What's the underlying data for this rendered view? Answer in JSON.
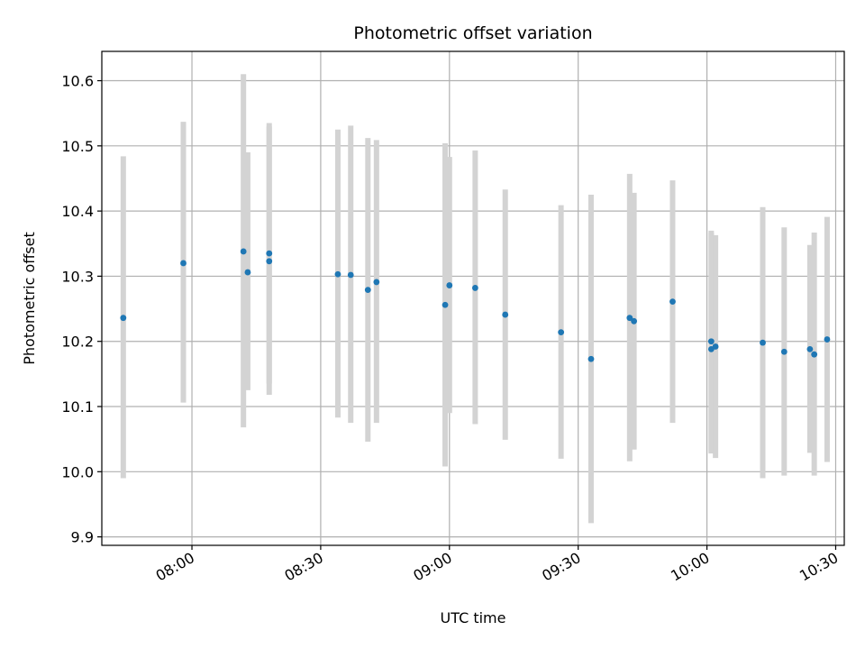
{
  "chart_data": {
    "type": "scatter",
    "title": "Photometric offset variation",
    "xlabel": "UTC time",
    "ylabel": "Photometric offset",
    "x_ticks": [
      "08:00",
      "08:30",
      "09:00",
      "09:30",
      "10:00",
      "10:30"
    ],
    "y_ticks": [
      "9.9",
      "10.0",
      "10.1",
      "10.2",
      "10.3",
      "10.4",
      "10.5",
      "10.6"
    ],
    "xlim": [
      "07:39",
      "10:32"
    ],
    "ylim": [
      9.887,
      10.645
    ],
    "grid": true,
    "marker_color": "#1f77b4",
    "errorbar_color": "#d3d3d3",
    "points": [
      {
        "time": "07:44",
        "y": 10.236,
        "err_low": 9.99,
        "err_high": 10.484
      },
      {
        "time": "07:58",
        "y": 10.32,
        "err_low": 10.106,
        "err_high": 10.537
      },
      {
        "time": "08:12",
        "y": 10.338,
        "err_low": 10.068,
        "err_high": 10.61
      },
      {
        "time": "08:13",
        "y": 10.306,
        "err_low": 10.125,
        "err_high": 10.49
      },
      {
        "time": "08:18",
        "y": 10.335,
        "err_low": 10.135,
        "err_high": 10.535
      },
      {
        "time": "08:18",
        "y": 10.323,
        "err_low": 10.118,
        "err_high": 10.53
      },
      {
        "time": "08:34",
        "y": 10.303,
        "err_low": 10.083,
        "err_high": 10.525
      },
      {
        "time": "08:37",
        "y": 10.302,
        "err_low": 10.075,
        "err_high": 10.531
      },
      {
        "time": "08:41",
        "y": 10.279,
        "err_low": 10.046,
        "err_high": 10.512
      },
      {
        "time": "08:43",
        "y": 10.291,
        "err_low": 10.075,
        "err_high": 10.509
      },
      {
        "time": "08:59",
        "y": 10.256,
        "err_low": 10.008,
        "err_high": 10.504
      },
      {
        "time": "09:00",
        "y": 10.286,
        "err_low": 10.09,
        "err_high": 10.483
      },
      {
        "time": "09:06",
        "y": 10.282,
        "err_low": 10.073,
        "err_high": 10.493
      },
      {
        "time": "09:13",
        "y": 10.241,
        "err_low": 10.049,
        "err_high": 10.433
      },
      {
        "time": "09:26",
        "y": 10.214,
        "err_low": 10.02,
        "err_high": 10.409
      },
      {
        "time": "09:33",
        "y": 10.173,
        "err_low": 9.921,
        "err_high": 10.425
      },
      {
        "time": "09:42",
        "y": 10.236,
        "err_low": 10.016,
        "err_high": 10.457
      },
      {
        "time": "09:43",
        "y": 10.231,
        "err_low": 10.034,
        "err_high": 10.428
      },
      {
        "time": "09:52",
        "y": 10.261,
        "err_low": 10.075,
        "err_high": 10.447
      },
      {
        "time": "10:01",
        "y": 10.2,
        "err_low": 10.03,
        "err_high": 10.37
      },
      {
        "time": "10:01",
        "y": 10.188,
        "err_low": 10.028,
        "err_high": 10.367
      },
      {
        "time": "10:02",
        "y": 10.192,
        "err_low": 10.021,
        "err_high": 10.363
      },
      {
        "time": "10:13",
        "y": 10.198,
        "err_low": 9.99,
        "err_high": 10.406
      },
      {
        "time": "10:18",
        "y": 10.184,
        "err_low": 9.994,
        "err_high": 10.375
      },
      {
        "time": "10:24",
        "y": 10.188,
        "err_low": 10.029,
        "err_high": 10.348
      },
      {
        "time": "10:25",
        "y": 10.18,
        "err_low": 9.994,
        "err_high": 10.367
      },
      {
        "time": "10:28",
        "y": 10.203,
        "err_low": 10.015,
        "err_high": 10.391
      }
    ]
  }
}
